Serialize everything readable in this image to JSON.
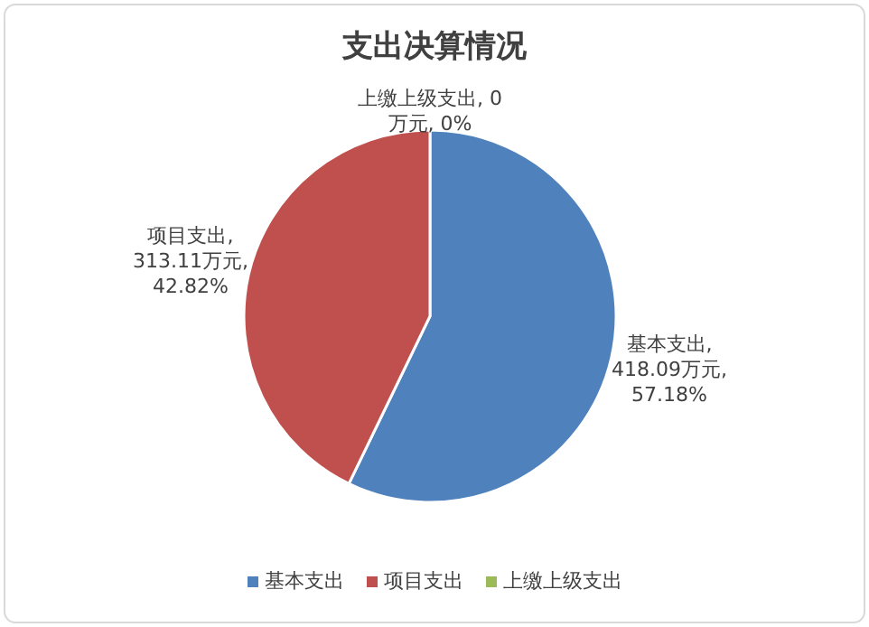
{
  "chart_data": {
    "type": "pie",
    "title": "支出决算情况",
    "categories": [
      "基本支出",
      "项目支出",
      "上缴上级支出"
    ],
    "values": [
      418.09,
      313.11,
      0
    ],
    "colors": [
      "#4f81bd",
      "#c0504d",
      "#9bbb59"
    ],
    "value_labels": [
      "基本支出, 418.09万元, 57.18%",
      "项目支出, 313.11万元, 42.82%",
      "上缴上级支出, 0万元, 0%"
    ],
    "legend": "bottom"
  }
}
